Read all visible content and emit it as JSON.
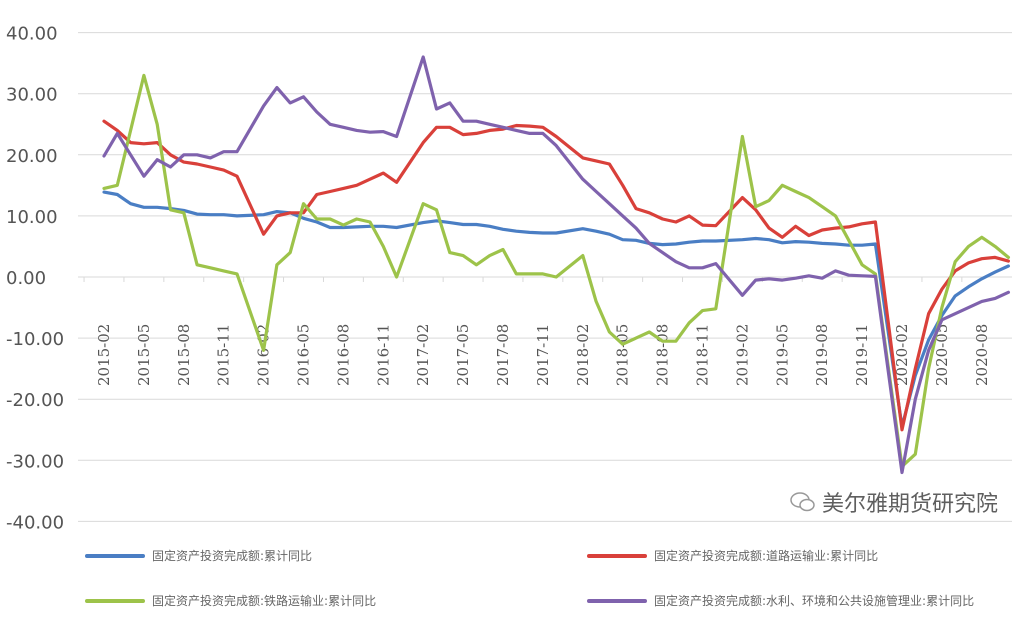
{
  "chart_data": {
    "type": "line",
    "title": "",
    "xlabel": "",
    "ylabel": "",
    "ylim": [
      -40,
      40
    ],
    "yticks": [
      "40.00",
      "30.00",
      "20.00",
      "10.00",
      "0.00",
      "-10.00",
      "-20.00",
      "-30.00",
      "-40.00"
    ],
    "ytick_values": [
      40,
      30,
      20,
      10,
      0,
      -10,
      -20,
      -30,
      -40
    ],
    "xticks": [
      "2015-02",
      "2015-05",
      "2015-08",
      "2015-11",
      "2016-02",
      "2016-05",
      "2016-08",
      "2016-11",
      "2017-02",
      "2017-05",
      "2017-08",
      "2017-11",
      "2018-02",
      "2018-05",
      "2018-08",
      "2018-11",
      "2019-02",
      "2019-05",
      "2019-08",
      "2019-11",
      "2020-02",
      "2020-05",
      "2020-08"
    ],
    "grid": true,
    "legend_position": "bottom",
    "x": [
      "2015-02",
      "2015-03",
      "2015-04",
      "2015-05",
      "2015-06",
      "2015-07",
      "2015-08",
      "2015-09",
      "2015-10",
      "2015-11",
      "2015-12",
      "2016-02",
      "2016-03",
      "2016-04",
      "2016-05",
      "2016-06",
      "2016-07",
      "2016-08",
      "2016-09",
      "2016-10",
      "2016-11",
      "2016-12",
      "2017-02",
      "2017-03",
      "2017-04",
      "2017-05",
      "2017-06",
      "2017-07",
      "2017-08",
      "2017-09",
      "2017-10",
      "2017-11",
      "2017-12",
      "2018-02",
      "2018-03",
      "2018-04",
      "2018-05",
      "2018-06",
      "2018-07",
      "2018-08",
      "2018-09",
      "2018-10",
      "2018-11",
      "2018-12",
      "2019-02",
      "2019-03",
      "2019-04",
      "2019-05",
      "2019-06",
      "2019-07",
      "2019-08",
      "2019-09",
      "2019-10",
      "2019-11",
      "2019-12",
      "2020-02",
      "2020-03",
      "2020-04",
      "2020-05",
      "2020-06",
      "2020-07",
      "2020-08",
      "2020-09",
      "2020-10"
    ],
    "series": [
      {
        "name": "固定资产投资完成额:累计同比",
        "color": "#4a7ec4",
        "values": [
          13.9,
          13.5,
          12.0,
          11.4,
          11.4,
          11.2,
          10.9,
          10.3,
          10.2,
          10.2,
          10.0,
          10.2,
          10.7,
          10.5,
          9.6,
          9.0,
          8.1,
          8.1,
          8.2,
          8.3,
          8.3,
          8.1,
          8.9,
          9.2,
          8.9,
          8.6,
          8.6,
          8.3,
          7.8,
          7.5,
          7.3,
          7.2,
          7.2,
          7.9,
          7.5,
          7.0,
          6.1,
          6.0,
          5.5,
          5.3,
          5.4,
          5.7,
          5.9,
          5.9,
          6.1,
          6.3,
          6.1,
          5.6,
          5.8,
          5.7,
          5.5,
          5.4,
          5.2,
          5.2,
          5.4,
          -24.5,
          -16.1,
          -10.3,
          -6.3,
          -3.1,
          -1.6,
          -0.3,
          0.8,
          1.8
        ]
      },
      {
        "name": "固定资产投资完成额:道路运输业:累计同比",
        "color": "#d9403a",
        "values": [
          25.5,
          24,
          22,
          21.8,
          22,
          20,
          18.8,
          18.5,
          18,
          17.5,
          16.5,
          7,
          10,
          10.5,
          10.5,
          13.5,
          14,
          14.5,
          15,
          16,
          17,
          15.5,
          22,
          24.5,
          24.5,
          23.3,
          23.5,
          24,
          24.2,
          24.8,
          24.7,
          24.5,
          23,
          19.5,
          19,
          18.5,
          15,
          11.2,
          10.5,
          9.5,
          9,
          10,
          8.5,
          8.4,
          13,
          11,
          8,
          6.5,
          8.3,
          6.8,
          7.7,
          8,
          8.2,
          8.7,
          9,
          -25,
          -15,
          -6,
          -2,
          1,
          2.3,
          3,
          3.2,
          2.6
        ]
      },
      {
        "name": "固定资产投资完成额:铁路运输业:累计同比",
        "color": "#9dc34a",
        "values": [
          14.5,
          15,
          24,
          33,
          25,
          11,
          10.5,
          2,
          1.5,
          1,
          0.5,
          -12,
          2,
          4,
          12,
          9.5,
          9.5,
          8.5,
          9.5,
          9,
          5,
          0,
          12,
          11,
          4,
          3.5,
          2,
          3.5,
          4.5,
          0.5,
          0.5,
          0.5,
          0,
          3.5,
          -4,
          -9,
          -11,
          -10,
          -9,
          -10.5,
          -10.5,
          -7.5,
          -5.5,
          -5.2,
          23,
          11.5,
          12.5,
          15,
          14,
          13,
          11.5,
          10,
          6,
          2,
          0.5,
          -31,
          -29,
          -15,
          -5,
          2.5,
          5,
          6.5,
          5,
          3.2
        ]
      },
      {
        "name": "固定资产投资完成额:水利、环境和公共设施管理业:累计同比",
        "color": "#7f62ad",
        "values": [
          19.8,
          23.5,
          20,
          16.5,
          19.2,
          18,
          20,
          20,
          19.5,
          20.5,
          20.5,
          28,
          31,
          28.5,
          29.5,
          27,
          25,
          24.5,
          24,
          23.7,
          23.8,
          23,
          36,
          27.5,
          28.5,
          25.5,
          25.5,
          25,
          24.5,
          24,
          23.5,
          23.5,
          21.5,
          16,
          14,
          12,
          10,
          8,
          5.5,
          4,
          2.5,
          1.5,
          1.5,
          2.2,
          -3,
          -0.5,
          -0.3,
          -0.5,
          -0.2,
          0.2,
          -0.2,
          1,
          0.3,
          0.2,
          0.1,
          -32,
          -20,
          -12,
          -7,
          -6,
          -5,
          -4,
          -3.5,
          -2.5
        ]
      }
    ]
  },
  "watermark": "美尔雅期货研究院"
}
